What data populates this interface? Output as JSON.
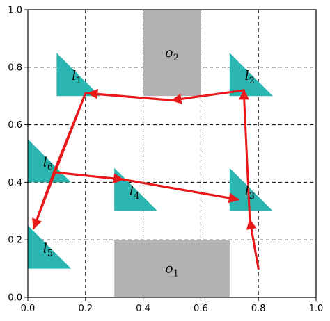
{
  "chart_data": {
    "type": "scatter",
    "title": "",
    "xlabel": "",
    "ylabel": "",
    "xlim": [
      0.0,
      1.0
    ],
    "ylim": [
      0.0,
      1.0
    ],
    "x_ticks": [
      "0.0",
      "0.2",
      "0.4",
      "0.6",
      "0.8",
      "1.0"
    ],
    "y_ticks": [
      "0.0",
      "0.2",
      "0.4",
      "0.6",
      "0.8",
      "1.0"
    ],
    "grid": "dashed",
    "obstacles": [
      {
        "name": "o",
        "sub": "1",
        "x0": 0.3,
        "x1": 0.7,
        "y0": 0.0,
        "y1": 0.2,
        "color": "#b2b2b2"
      },
      {
        "name": "o",
        "sub": "2",
        "x0": 0.4,
        "x1": 0.6,
        "y0": 0.7,
        "y1": 1.0,
        "color": "#b2b2b2"
      }
    ],
    "landmarks": [
      {
        "name": "l",
        "sub": "1",
        "points": [
          [
            0.1,
            0.7
          ],
          [
            0.25,
            0.7
          ],
          [
            0.1,
            0.85
          ]
        ],
        "label_at": [
          0.17,
          0.77
        ]
      },
      {
        "name": "l",
        "sub": "2",
        "points": [
          [
            0.7,
            0.7
          ],
          [
            0.85,
            0.7
          ],
          [
            0.7,
            0.85
          ]
        ],
        "label_at": [
          0.77,
          0.77
        ]
      },
      {
        "name": "l",
        "sub": "3",
        "points": [
          [
            0.7,
            0.3
          ],
          [
            0.85,
            0.3
          ],
          [
            0.7,
            0.45
          ]
        ],
        "label_at": [
          0.77,
          0.37
        ]
      },
      {
        "name": "l",
        "sub": "4",
        "points": [
          [
            0.3,
            0.3
          ],
          [
            0.45,
            0.3
          ],
          [
            0.3,
            0.45
          ]
        ],
        "label_at": [
          0.37,
          0.37
        ]
      },
      {
        "name": "l",
        "sub": "5",
        "points": [
          [
            0.0,
            0.1
          ],
          [
            0.15,
            0.1
          ],
          [
            0.0,
            0.25
          ]
        ],
        "label_at": [
          0.07,
          0.17
        ]
      },
      {
        "name": "l",
        "sub": "6",
        "points": [
          [
            0.0,
            0.4
          ],
          [
            0.15,
            0.4
          ],
          [
            0.0,
            0.55
          ]
        ],
        "label_at": [
          0.07,
          0.47
        ]
      }
    ],
    "landmark_color": "#2bb5b0",
    "path_color": "#e8191b",
    "path": [
      [
        0.8,
        0.1
      ],
      [
        0.77,
        0.27
      ],
      [
        0.75,
        0.7
      ],
      [
        0.75,
        0.72
      ],
      [
        0.5,
        0.685
      ],
      [
        0.2,
        0.71
      ],
      [
        0.09,
        0.435
      ],
      [
        0.02,
        0.24
      ],
      [
        0.09,
        0.435
      ],
      [
        0.33,
        0.41
      ],
      [
        0.73,
        0.34
      ]
    ],
    "arrows_at": [
      [
        [
          0.8,
          0.1
        ],
        [
          0.77,
          0.27
        ]
      ],
      [
        [
          0.75,
          0.7
        ],
        [
          0.75,
          0.72
        ]
      ],
      [
        [
          0.6,
          0.7
        ],
        [
          0.5,
          0.685
        ]
      ],
      [
        [
          0.5,
          0.685
        ],
        [
          0.21,
          0.71
        ]
      ],
      [
        [
          0.2,
          0.71
        ],
        [
          0.02,
          0.24
        ]
      ],
      [
        [
          0.09,
          0.435
        ],
        [
          0.33,
          0.41
        ]
      ],
      [
        [
          0.33,
          0.41
        ],
        [
          0.73,
          0.34
        ]
      ]
    ]
  }
}
